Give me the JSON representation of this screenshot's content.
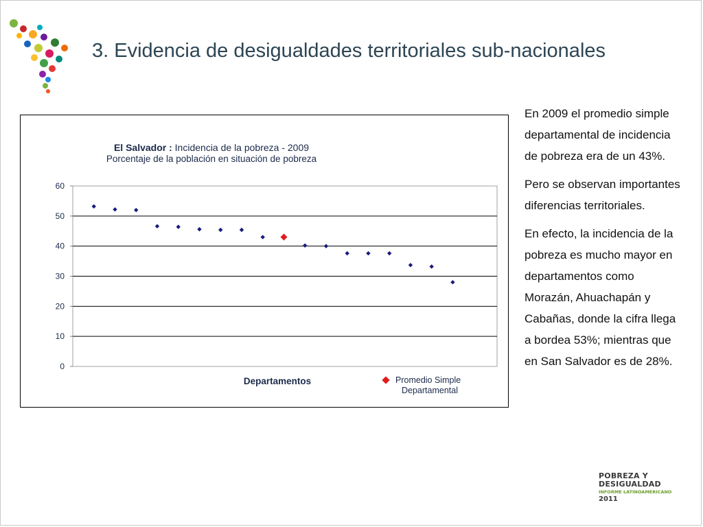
{
  "slide": {
    "title": "3. Evidencia de desigualdades territoriales sub-nacionales"
  },
  "side_text": {
    "paragraphs": [
      "En 2009 el promedio simple departamental de incidencia de pobreza era de un 43%.",
      "Pero se observan importantes diferencias territoriales.",
      "En efecto, la incidencia de la pobreza es mucho mayor en departamentos como Morazán, Ahuachapán y Cabañas, donde la cifra llega a bordea 53%; mientras que en San Salvador es de 28%."
    ]
  },
  "brand": {
    "line1": "POBREZA Y",
    "line2": "DESIGUALDAD",
    "line3": "INFORME LATINOAMERICANO",
    "line4": "2011"
  },
  "colors": {
    "series_marker": "#1a1a7e",
    "average_marker": "#e21b1b",
    "title_text": "#2d4554",
    "gridline": "#000000"
  },
  "chart_data": {
    "type": "scatter",
    "title_bold": "El Salvador :",
    "title_rest": "Incidencia de la pobreza -  2009",
    "subtitle": "Porcentaje de la población en situación de pobreza",
    "xlabel": "Departamentos",
    "ylabel": "",
    "ylim": [
      0,
      60
    ],
    "yticks": [
      0,
      10,
      20,
      30,
      40,
      50,
      60
    ],
    "grid": true,
    "legend_position": "bottom-right",
    "series": [
      {
        "name": "Departamentos",
        "values": [
          53.2,
          52.2,
          52.0,
          46.6,
          46.4,
          45.6,
          45.4,
          45.4,
          43.0,
          null,
          40.2,
          40.0,
          37.6,
          37.6,
          37.6,
          33.7,
          33.2,
          28.0
        ]
      },
      {
        "name": "Promedio Simple Departamental",
        "values": [
          null,
          null,
          null,
          null,
          null,
          null,
          null,
          null,
          null,
          43.0,
          null,
          null,
          null,
          null,
          null,
          null,
          null,
          null
        ]
      }
    ],
    "legend_label": "Promedio Simple Departamental"
  }
}
